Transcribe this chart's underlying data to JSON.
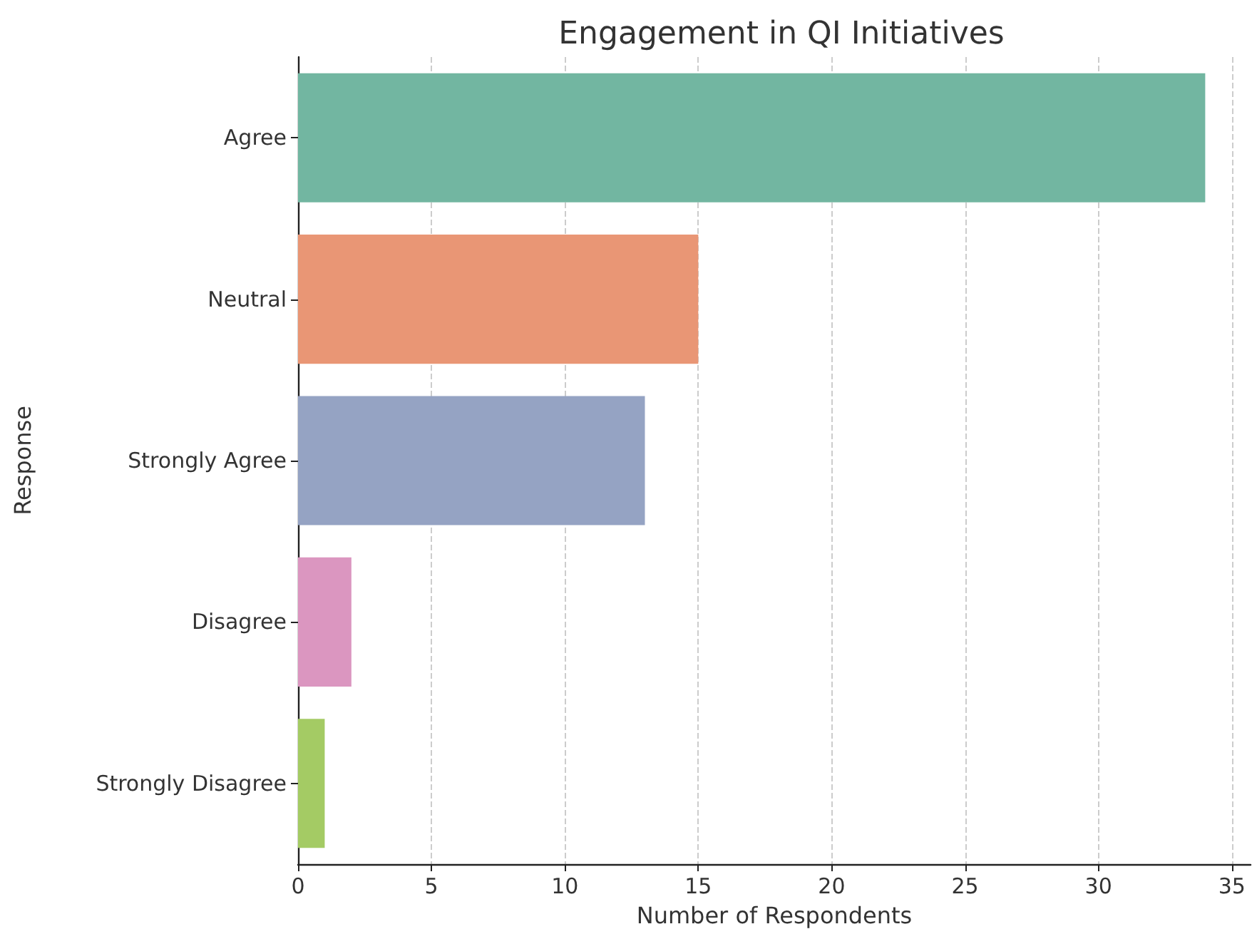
{
  "chart_data": {
    "type": "bar",
    "orientation": "horizontal",
    "title": "Engagement in QI Initiatives",
    "xlabel": "Number of Respondents",
    "ylabel": "Response",
    "categories": [
      "Agree",
      "Neutral",
      "Strongly Agree",
      "Disagree",
      "Strongly Disagree"
    ],
    "values": [
      34,
      15,
      13,
      2,
      1
    ],
    "colors": [
      "#72b6a1",
      "#e99675",
      "#95a3c3",
      "#db96c0",
      "#a4cb64"
    ],
    "xlim": [
      0,
      35.7
    ],
    "xticks": [
      0,
      5,
      10,
      15,
      20,
      25,
      30,
      35
    ],
    "grid": "x"
  }
}
